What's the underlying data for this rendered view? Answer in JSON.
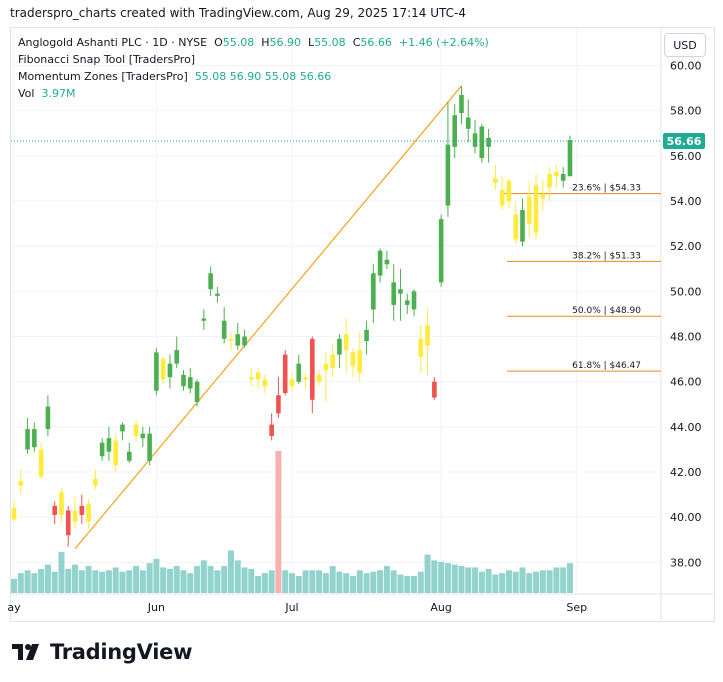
{
  "credit": "traderspro_charts created with TradingView.com, Aug 29, 2025 17:14 UTC-4",
  "legend": {
    "symbol": "Anglogold Ashanti PLC · 1D · NYSE",
    "o_label": "O",
    "o": "55.08",
    "h_label": "H",
    "h": "56.90",
    "l_label": "L",
    "l": "55.08",
    "c_label": "C",
    "c": "56.66",
    "change": "+1.46 (+2.64%)",
    "indicator1": "Fibonacci Snap Tool [TradersPro]",
    "indicator2": "Momentum Zones [TradersPro]",
    "ind2_values": "55.08  56.90  55.08  56.66",
    "vol_label": "Vol",
    "vol_value": "3.97M"
  },
  "currency_button": "USD",
  "price_tag": "56.66",
  "logo_text": "TradingView",
  "colors": {
    "up": "#4caf50",
    "down": "#ef5350",
    "neutral": "#ffeb3b",
    "fib": "#f7a21b",
    "volume": "#80cbc4",
    "volume_spike": "#f4a3a3",
    "price_tag": "#22ab94",
    "grid": "#f0f3fa"
  },
  "chart_data": {
    "type": "candlestick",
    "ylim": [
      36.8,
      61
    ],
    "y_ticks": [
      "60.00",
      "58.00",
      "56.00",
      "54.00",
      "52.00",
      "50.00",
      "48.00",
      "46.00",
      "44.00",
      "42.00",
      "40.00",
      "38.00"
    ],
    "x_ticks": [
      {
        "label": "ay",
        "index": 0
      },
      {
        "label": "Jun",
        "index": 21
      },
      {
        "label": "Jul",
        "index": 41
      },
      {
        "label": "Aug",
        "index": 63
      },
      {
        "label": "Sep",
        "index": 83
      }
    ],
    "last_price": 56.66,
    "fib_levels": [
      {
        "label": "23.6% | $54.33",
        "value": 54.33
      },
      {
        "label": "38.2% | $51.33",
        "value": 51.33
      },
      {
        "label": "50.0% | $48.90",
        "value": 48.9
      },
      {
        "label": "61.8% | $46.47",
        "value": 46.47
      }
    ],
    "fib_anchor": {
      "start_index": 9,
      "start_price": 38.6,
      "end_index": 66,
      "end_price": 59.1
    },
    "candles": [
      {
        "o": 40.4,
        "h": 40.8,
        "l": 39.8,
        "c": 39.9,
        "t": "n"
      },
      {
        "o": 41.6,
        "h": 42.1,
        "l": 41.0,
        "c": 41.4,
        "t": "n"
      },
      {
        "o": 43.0,
        "h": 44.4,
        "l": 42.8,
        "c": 43.9,
        "t": "u"
      },
      {
        "o": 43.9,
        "h": 44.2,
        "l": 42.9,
        "c": 43.1,
        "t": "u"
      },
      {
        "o": 43.0,
        "h": 43.3,
        "l": 41.7,
        "c": 41.8,
        "t": "n"
      },
      {
        "o": 43.9,
        "h": 45.4,
        "l": 43.6,
        "c": 44.9,
        "t": "u"
      },
      {
        "o": 40.5,
        "h": 40.7,
        "l": 39.7,
        "c": 40.1,
        "t": "d"
      },
      {
        "o": 40.1,
        "h": 41.3,
        "l": 39.8,
        "c": 41.1,
        "t": "n"
      },
      {
        "o": 40.3,
        "h": 40.5,
        "l": 38.7,
        "c": 39.2,
        "t": "d"
      },
      {
        "o": 40.3,
        "h": 40.9,
        "l": 39.5,
        "c": 39.8,
        "t": "n"
      },
      {
        "o": 40.5,
        "h": 41.0,
        "l": 39.7,
        "c": 40.1,
        "t": "d"
      },
      {
        "o": 39.8,
        "h": 40.8,
        "l": 39.5,
        "c": 40.6,
        "t": "n"
      },
      {
        "o": 41.4,
        "h": 42.1,
        "l": 41.2,
        "c": 41.7,
        "t": "n"
      },
      {
        "o": 42.7,
        "h": 43.5,
        "l": 42.5,
        "c": 43.3,
        "t": "u"
      },
      {
        "o": 42.9,
        "h": 44.0,
        "l": 42.5,
        "c": 43.5,
        "t": "u"
      },
      {
        "o": 43.4,
        "h": 43.7,
        "l": 42.0,
        "c": 42.3,
        "t": "n"
      },
      {
        "o": 43.8,
        "h": 44.2,
        "l": 43.4,
        "c": 44.1,
        "t": "u"
      },
      {
        "o": 42.5,
        "h": 43.3,
        "l": 42.4,
        "c": 42.9,
        "t": "u"
      },
      {
        "o": 44.1,
        "h": 44.3,
        "l": 43.3,
        "c": 43.6,
        "t": "n"
      },
      {
        "o": 43.7,
        "h": 44.0,
        "l": 43.1,
        "c": 43.5,
        "t": "u"
      },
      {
        "o": 42.5,
        "h": 44.0,
        "l": 42.3,
        "c": 43.7,
        "t": "u"
      },
      {
        "o": 45.6,
        "h": 47.5,
        "l": 45.4,
        "c": 47.3,
        "t": "u"
      },
      {
        "o": 47.0,
        "h": 47.1,
        "l": 45.9,
        "c": 46.1,
        "t": "n"
      },
      {
        "o": 46.2,
        "h": 47.2,
        "l": 45.7,
        "c": 46.8,
        "t": "u"
      },
      {
        "o": 47.4,
        "h": 48.0,
        "l": 46.6,
        "c": 46.8,
        "t": "u"
      },
      {
        "o": 45.8,
        "h": 46.5,
        "l": 45.6,
        "c": 46.3,
        "t": "u"
      },
      {
        "o": 46.2,
        "h": 46.6,
        "l": 45.5,
        "c": 45.7,
        "t": "u"
      },
      {
        "o": 45.1,
        "h": 46.1,
        "l": 44.9,
        "c": 46.0,
        "t": "u"
      },
      {
        "o": 48.7,
        "h": 49.2,
        "l": 48.3,
        "c": 48.8,
        "t": "u"
      },
      {
        "o": 50.1,
        "h": 51.1,
        "l": 49.8,
        "c": 50.8,
        "t": "u"
      },
      {
        "o": 49.8,
        "h": 50.2,
        "l": 49.5,
        "c": 49.9,
        "t": "u"
      },
      {
        "o": 48.7,
        "h": 49.3,
        "l": 47.7,
        "c": 47.9,
        "t": "u"
      },
      {
        "o": 47.9,
        "h": 48.2,
        "l": 47.4,
        "c": 47.8,
        "t": "n"
      },
      {
        "o": 48.1,
        "h": 48.6,
        "l": 47.4,
        "c": 47.6,
        "t": "u"
      },
      {
        "o": 47.6,
        "h": 48.3,
        "l": 47.5,
        "c": 48.0,
        "t": "u"
      },
      {
        "o": 46.1,
        "h": 46.6,
        "l": 45.8,
        "c": 46.2,
        "t": "n"
      },
      {
        "o": 46.1,
        "h": 46.6,
        "l": 45.7,
        "c": 46.4,
        "t": "n"
      },
      {
        "o": 45.8,
        "h": 46.3,
        "l": 45.5,
        "c": 46.1,
        "t": "n"
      },
      {
        "o": 44.1,
        "h": 44.6,
        "l": 43.4,
        "c": 43.6,
        "t": "d"
      },
      {
        "o": 45.4,
        "h": 46.2,
        "l": 44.4,
        "c": 44.6,
        "t": "d"
      },
      {
        "o": 45.5,
        "h": 47.4,
        "l": 45.4,
        "c": 47.2,
        "t": "d"
      },
      {
        "o": 45.8,
        "h": 46.4,
        "l": 45.6,
        "c": 46.1,
        "t": "n"
      },
      {
        "o": 46.8,
        "h": 47.2,
        "l": 45.9,
        "c": 46.0,
        "t": "u"
      },
      {
        "o": 46.2,
        "h": 46.4,
        "l": 45.7,
        "c": 46.1,
        "t": "n"
      },
      {
        "o": 45.2,
        "h": 48.0,
        "l": 44.6,
        "c": 47.9,
        "t": "d"
      },
      {
        "o": 46.0,
        "h": 46.5,
        "l": 45.8,
        "c": 46.3,
        "t": "n"
      },
      {
        "o": 46.5,
        "h": 47.3,
        "l": 45.1,
        "c": 46.8,
        "t": "n"
      },
      {
        "o": 47.2,
        "h": 47.7,
        "l": 46.2,
        "c": 46.6,
        "t": "n"
      },
      {
        "o": 47.2,
        "h": 48.1,
        "l": 46.6,
        "c": 47.9,
        "t": "u"
      },
      {
        "o": 47.4,
        "h": 48.8,
        "l": 46.4,
        "c": 48.1,
        "t": "n"
      },
      {
        "o": 46.7,
        "h": 47.5,
        "l": 46.2,
        "c": 47.3,
        "t": "n"
      },
      {
        "o": 47.4,
        "h": 48.2,
        "l": 46.0,
        "c": 46.4,
        "t": "n"
      },
      {
        "o": 47.8,
        "h": 48.7,
        "l": 47.2,
        "c": 48.3,
        "t": "u"
      },
      {
        "o": 49.2,
        "h": 51.2,
        "l": 48.6,
        "c": 50.8,
        "t": "u"
      },
      {
        "o": 50.7,
        "h": 51.9,
        "l": 50.4,
        "c": 51.8,
        "t": "u"
      },
      {
        "o": 51.4,
        "h": 51.8,
        "l": 51.0,
        "c": 51.2,
        "t": "u"
      },
      {
        "o": 50.4,
        "h": 51.2,
        "l": 48.7,
        "c": 49.4,
        "t": "u"
      },
      {
        "o": 50.1,
        "h": 51.0,
        "l": 48.7,
        "c": 49.9,
        "t": "u"
      },
      {
        "o": 49.6,
        "h": 49.9,
        "l": 49.0,
        "c": 49.4,
        "t": "u"
      },
      {
        "o": 49.2,
        "h": 50.1,
        "l": 48.9,
        "c": 50.0,
        "t": "u"
      },
      {
        "o": 47.9,
        "h": 48.5,
        "l": 46.4,
        "c": 47.1,
        "t": "n"
      },
      {
        "o": 48.5,
        "h": 49.2,
        "l": 46.3,
        "c": 47.6,
        "t": "n"
      },
      {
        "o": 45.3,
        "h": 46.2,
        "l": 45.2,
        "c": 46.0,
        "t": "d"
      },
      {
        "o": 50.4,
        "h": 53.4,
        "l": 50.2,
        "c": 53.2,
        "t": "u"
      },
      {
        "o": 53.8,
        "h": 58.4,
        "l": 53.3,
        "c": 56.5,
        "t": "u"
      },
      {
        "o": 57.8,
        "h": 58.3,
        "l": 55.9,
        "c": 56.4,
        "t": "u"
      },
      {
        "o": 58.7,
        "h": 59.1,
        "l": 57.4,
        "c": 57.9,
        "t": "u"
      },
      {
        "o": 57.7,
        "h": 58.5,
        "l": 56.6,
        "c": 57.2,
        "t": "u"
      },
      {
        "o": 56.4,
        "h": 57.6,
        "l": 56.1,
        "c": 57.0,
        "t": "u"
      },
      {
        "o": 57.3,
        "h": 57.4,
        "l": 55.7,
        "c": 55.9,
        "t": "u"
      },
      {
        "o": 56.4,
        "h": 57.2,
        "l": 55.7,
        "c": 56.8,
        "t": "u"
      },
      {
        "o": 54.8,
        "h": 55.6,
        "l": 54.5,
        "c": 55.0,
        "t": "n"
      },
      {
        "o": 54.5,
        "h": 55.1,
        "l": 53.6,
        "c": 53.8,
        "t": "n"
      },
      {
        "o": 54.9,
        "h": 55.0,
        "l": 53.7,
        "c": 54.0,
        "t": "n"
      },
      {
        "o": 53.4,
        "h": 53.9,
        "l": 52.1,
        "c": 52.3,
        "t": "n"
      },
      {
        "o": 53.6,
        "h": 54.1,
        "l": 52.0,
        "c": 52.2,
        "t": "u"
      },
      {
        "o": 54.2,
        "h": 54.8,
        "l": 52.4,
        "c": 53.0,
        "t": "n"
      },
      {
        "o": 52.6,
        "h": 55.2,
        "l": 52.3,
        "c": 54.7,
        "t": "n"
      },
      {
        "o": 54.1,
        "h": 54.9,
        "l": 53.6,
        "c": 54.3,
        "t": "n"
      },
      {
        "o": 54.6,
        "h": 55.5,
        "l": 54.0,
        "c": 55.2,
        "t": "n"
      },
      {
        "o": 55.3,
        "h": 55.6,
        "l": 54.6,
        "c": 55.1,
        "t": "n"
      },
      {
        "o": 55.2,
        "h": 55.5,
        "l": 54.6,
        "c": 54.9,
        "t": "u"
      },
      {
        "o": 55.1,
        "h": 56.9,
        "l": 55.1,
        "c": 56.7,
        "t": "u"
      }
    ],
    "volume_max": 10,
    "volumes": [
      1.0,
      1.4,
      1.6,
      1.4,
      1.7,
      2.0,
      1.5,
      2.9,
      1.7,
      2.0,
      1.6,
      1.9,
      1.6,
      1.5,
      1.6,
      1.8,
      1.5,
      1.6,
      1.9,
      1.6,
      2.1,
      2.4,
      1.8,
      1.7,
      1.9,
      1.6,
      1.4,
      1.9,
      2.3,
      1.9,
      1.6,
      1.9,
      3.0,
      2.3,
      1.8,
      1.7,
      1.2,
      1.4,
      1.6,
      10.0,
      1.6,
      1.4,
      1.2,
      1.6,
      1.6,
      1.6,
      1.4,
      1.9,
      1.5,
      1.4,
      1.2,
      1.6,
      1.4,
      1.5,
      1.6,
      1.9,
      1.6,
      1.3,
      1.2,
      1.2,
      1.5,
      2.7,
      2.3,
      2.2,
      2.1,
      2.0,
      1.9,
      1.8,
      1.8,
      1.5,
      1.7,
      1.3,
      1.4,
      1.6,
      1.5,
      1.8,
      1.4,
      1.5,
      1.6,
      1.6,
      1.8,
      1.8,
      2.1
    ]
  }
}
